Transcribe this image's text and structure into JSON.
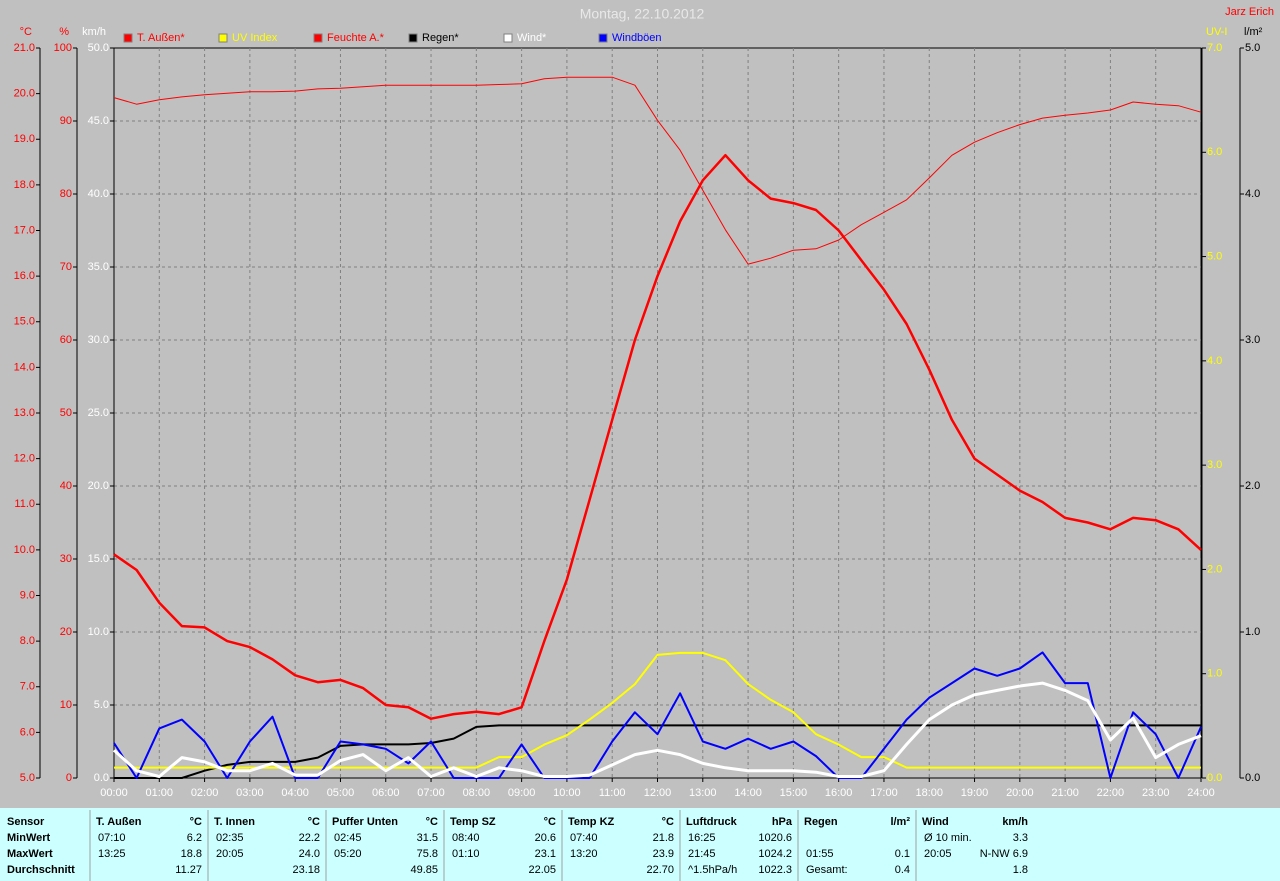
{
  "chart_data": {
    "type": "line",
    "title": "Montag, 22.10.2012",
    "author": "Jarz Erich",
    "x": [
      0,
      0.5,
      1,
      1.5,
      2,
      2.5,
      3,
      3.5,
      4,
      4.5,
      5,
      5.5,
      6,
      6.5,
      7,
      7.5,
      8,
      8.5,
      9,
      9.5,
      10,
      10.5,
      11,
      11.5,
      12,
      12.5,
      13,
      13.5,
      14,
      14.5,
      15,
      15.5,
      16,
      16.5,
      17,
      17.5,
      18,
      18.5,
      19,
      19.5,
      20,
      20.5,
      21,
      21.5,
      22,
      22.5,
      23,
      23.5,
      24
    ],
    "xlim": [
      0,
      24
    ],
    "xticks": [
      {
        "value": 0,
        "label": "00:00"
      },
      {
        "value": 1,
        "label": "01:00"
      },
      {
        "value": 2,
        "label": "02:00"
      },
      {
        "value": 3,
        "label": "03:00"
      },
      {
        "value": 4,
        "label": "04:00"
      },
      {
        "value": 5,
        "label": "05:00"
      },
      {
        "value": 6,
        "label": "06:00"
      },
      {
        "value": 7,
        "label": "07:00"
      },
      {
        "value": 8,
        "label": "08:00"
      },
      {
        "value": 9,
        "label": "09:00"
      },
      {
        "value": 10,
        "label": "10:00"
      },
      {
        "value": 11,
        "label": "11:00"
      },
      {
        "value": 12,
        "label": "12:00"
      },
      {
        "value": 13,
        "label": "13:00"
      },
      {
        "value": 14,
        "label": "14:00"
      },
      {
        "value": 15,
        "label": "15:00"
      },
      {
        "value": 16,
        "label": "16:00"
      },
      {
        "value": 17,
        "label": "17:00"
      },
      {
        "value": 18,
        "label": "18:00"
      },
      {
        "value": 19,
        "label": "19:00"
      },
      {
        "value": 20,
        "label": "20:00"
      },
      {
        "value": 21,
        "label": "21:00"
      },
      {
        "value": 22,
        "label": "22:00"
      },
      {
        "value": 23,
        "label": "23:00"
      },
      {
        "value": 24,
        "label": "24:00"
      }
    ],
    "grid": true,
    "axes": [
      {
        "label": "°C",
        "color": "#ff0000",
        "side": "left",
        "lim": [
          5,
          21
        ],
        "ticks": [
          {
            "value": 5,
            "label": "5.0"
          },
          {
            "value": 6,
            "label": "6.0"
          },
          {
            "value": 7,
            "label": "7.0"
          },
          {
            "value": 8,
            "label": "8.0"
          },
          {
            "value": 9,
            "label": "9.0"
          },
          {
            "value": 10,
            "label": "10.0"
          },
          {
            "value": 11,
            "label": "11.0"
          },
          {
            "value": 12,
            "label": "12.0"
          },
          {
            "value": 13,
            "label": "13.0"
          },
          {
            "value": 14,
            "label": "14.0"
          },
          {
            "value": 15,
            "label": "15.0"
          },
          {
            "value": 16,
            "label": "16.0"
          },
          {
            "value": 17,
            "label": "17.0"
          },
          {
            "value": 18,
            "label": "18.0"
          },
          {
            "value": 19,
            "label": "19.0"
          },
          {
            "value": 20,
            "label": "20.0"
          },
          {
            "value": 21,
            "label": "21.0"
          }
        ]
      },
      {
        "label": "%",
        "color": "#ff0000",
        "side": "left",
        "lim": [
          0,
          100
        ],
        "ticks": [
          0,
          10,
          20,
          30,
          40,
          50,
          60,
          70,
          80,
          90,
          100
        ]
      },
      {
        "label": "km/h",
        "color": "#ffffff",
        "side": "left",
        "lim": [
          0,
          50
        ],
        "grid": true,
        "ticks": [
          {
            "value": 0,
            "label": "0.0"
          },
          {
            "value": 5,
            "label": "5.0"
          },
          {
            "value": 10,
            "label": "10.0"
          },
          {
            "value": 15,
            "label": "15.0"
          },
          {
            "value": 20,
            "label": "20.0"
          },
          {
            "value": 25,
            "label": "25.0"
          },
          {
            "value": 30,
            "label": "30.0"
          },
          {
            "value": 35,
            "label": "35.0"
          },
          {
            "value": 40,
            "label": "40.0"
          },
          {
            "value": 45,
            "label": "45.0"
          },
          {
            "value": 50,
            "label": "50.0"
          }
        ]
      },
      {
        "label": "UV-I",
        "color": "#ffff00",
        "side": "right",
        "lim": [
          0,
          7
        ],
        "ticks": [
          {
            "value": 0,
            "label": "0.0"
          },
          {
            "value": 1,
            "label": "1.0"
          },
          {
            "value": 2,
            "label": "2.0"
          },
          {
            "value": 3,
            "label": "3.0"
          },
          {
            "value": 4,
            "label": "4.0"
          },
          {
            "value": 5,
            "label": "5.0"
          },
          {
            "value": 6,
            "label": "6.0"
          },
          {
            "value": 7,
            "label": "7.0"
          }
        ]
      },
      {
        "label": "l/m²",
        "color": "#000000",
        "side": "right",
        "lim": [
          0,
          5
        ],
        "ticks": [
          {
            "value": 0,
            "label": "0.0"
          },
          {
            "value": 1,
            "label": "1.0"
          },
          {
            "value": 2,
            "label": "2.0"
          },
          {
            "value": 3,
            "label": "3.0"
          },
          {
            "value": 4,
            "label": "4.0"
          },
          {
            "value": 5,
            "label": "5.0"
          }
        ]
      }
    ],
    "series": [
      {
        "name": "T. Außen*",
        "color": "#ff0000",
        "axis": 0,
        "line_width": 2.5,
        "values": [
          9.9,
          9.56,
          8.84,
          8.33,
          8.3,
          8.0,
          7.87,
          7.6,
          7.25,
          7.1,
          7.15,
          6.97,
          6.6,
          6.55,
          6.3,
          6.4,
          6.45,
          6.4,
          6.55,
          8.0,
          9.35,
          11.1,
          12.85,
          14.6,
          16.0,
          17.2,
          18.1,
          18.65,
          18.1,
          17.7,
          17.6,
          17.45,
          17.0,
          16.35,
          15.7,
          14.95,
          13.95,
          12.85,
          12.0,
          11.65,
          11.3,
          11.05,
          10.7,
          10.6,
          10.45,
          10.7,
          10.65,
          10.45,
          10.0
        ]
      },
      {
        "name": "UV Index",
        "color": "#ffff00",
        "axis": 3,
        "line_width": 2,
        "values": [
          0.1,
          0.1,
          0.1,
          0.1,
          0.1,
          0.1,
          0.1,
          0.1,
          0.1,
          0.1,
          0.1,
          0.1,
          0.1,
          0.1,
          0.1,
          0.1,
          0.1,
          0.2,
          0.2,
          0.32,
          0.41,
          0.56,
          0.72,
          0.9,
          1.18,
          1.2,
          1.2,
          1.13,
          0.9,
          0.75,
          0.63,
          0.42,
          0.32,
          0.2,
          0.2,
          0.1,
          0.1,
          0.1,
          0.1,
          0.1,
          0.1,
          0.1,
          0.1,
          0.1,
          0.1,
          0.1,
          0.1,
          0.1,
          0.1
        ]
      },
      {
        "name": "Feuchte A.*",
        "color": "#ff0000",
        "axis": 1,
        "line_width": 1,
        "values": [
          93.2,
          92.3,
          92.9,
          93.3,
          93.6,
          93.8,
          94.0,
          94.0,
          94.1,
          94.4,
          94.5,
          94.7,
          94.9,
          94.9,
          94.9,
          94.9,
          94.9,
          95.0,
          95.1,
          95.8,
          96.0,
          96.0,
          96.0,
          94.9,
          90.1,
          86.0,
          80.5,
          75.1,
          70.4,
          71.2,
          72.3,
          72.5,
          73.7,
          75.8,
          77.5,
          79.2,
          82.2,
          85.3,
          87.1,
          88.4,
          89.5,
          90.4,
          90.8,
          91.1,
          91.5,
          92.6,
          92.3,
          92.1,
          91.2
        ]
      },
      {
        "name": "Regen*",
        "color": "#000000",
        "axis": 4,
        "line_width": 2,
        "values": [
          0,
          0,
          0,
          0,
          0.05,
          0.09,
          0.11,
          0.11,
          0.11,
          0.14,
          0.22,
          0.23,
          0.23,
          0.23,
          0.24,
          0.27,
          0.35,
          0.36,
          0.36,
          0.36,
          0.36,
          0.36,
          0.36,
          0.36,
          0.36,
          0.36,
          0.36,
          0.36,
          0.36,
          0.36,
          0.36,
          0.36,
          0.36,
          0.36,
          0.36,
          0.36,
          0.36,
          0.36,
          0.36,
          0.36,
          0.36,
          0.36,
          0.36,
          0.36,
          0.36,
          0.36,
          0.36,
          0.36,
          0.36
        ]
      },
      {
        "name": "Wind*",
        "color": "#ffffff",
        "axis": 2,
        "line_width": 3,
        "values": [
          1.9,
          0.5,
          0.1,
          1.4,
          1.1,
          0.5,
          0.5,
          1.0,
          0.2,
          0.2,
          1.2,
          1.6,
          0.5,
          1.4,
          0.1,
          0.7,
          0.1,
          0.7,
          0.5,
          0.1,
          0.1,
          0.2,
          0.9,
          1.6,
          1.9,
          1.6,
          1.0,
          0.7,
          0.5,
          0.5,
          0.5,
          0.4,
          0.1,
          0.1,
          0.5,
          2.3,
          4.0,
          5.0,
          5.7,
          6.0,
          6.3,
          6.5,
          6.0,
          5.3,
          2.6,
          4.1,
          1.4,
          2.3,
          2.9
        ]
      },
      {
        "name": "Windböen",
        "color": "#0000ff",
        "axis": 2,
        "line_width": 2,
        "values": [
          2.4,
          0,
          3.4,
          4.0,
          2.5,
          0,
          2.5,
          4.2,
          0,
          0,
          2.5,
          2.3,
          2.0,
          1.0,
          2.5,
          0,
          0,
          0,
          2.3,
          0,
          0,
          0,
          2.5,
          4.5,
          3.0,
          5.8,
          2.5,
          2.0,
          2.7,
          2.0,
          2.5,
          1.5,
          0,
          0,
          2.0,
          4.0,
          5.5,
          6.5,
          7.5,
          7.0,
          7.5,
          8.6,
          6.5,
          6.5,
          0,
          4.5,
          3.0,
          0,
          3.5
        ]
      }
    ]
  },
  "table": {
    "row_labels": [
      "Sensor",
      "MinWert",
      "MaxWert",
      "Durchschnitt"
    ],
    "groups": [
      {
        "name": "T. Außen",
        "unit": "°C",
        "rows": [
          [
            "07:10",
            "6.2"
          ],
          [
            "13:25",
            "18.8"
          ],
          [
            null,
            "11.27"
          ]
        ]
      },
      {
        "name": "T. Innen",
        "unit": "°C",
        "rows": [
          [
            "02:35",
            "22.2"
          ],
          [
            "20:05",
            "24.0"
          ],
          [
            null,
            "23.18"
          ]
        ]
      },
      {
        "name": "Puffer Unten",
        "unit": "°C",
        "rows": [
          [
            "02:45",
            "31.5"
          ],
          [
            "05:20",
            "75.8"
          ],
          [
            null,
            "49.85"
          ]
        ]
      },
      {
        "name": "Temp SZ",
        "unit": "°C",
        "rows": [
          [
            "08:40",
            "20.6"
          ],
          [
            "01:10",
            "23.1"
          ],
          [
            null,
            "22.05"
          ]
        ]
      },
      {
        "name": "Temp KZ",
        "unit": "°C",
        "rows": [
          [
            "07:40",
            "21.8"
          ],
          [
            "13:20",
            "23.9"
          ],
          [
            null,
            "22.70"
          ]
        ]
      },
      {
        "name": "Luftdruck",
        "unit": "hPa",
        "rows": [
          [
            "16:25",
            "1020.6"
          ],
          [
            "21:45",
            "1024.2"
          ],
          [
            "^1.5hPa/h",
            "1022.3"
          ]
        ]
      },
      {
        "name": "Regen",
        "unit": "l/m²",
        "rows": [
          [
            null,
            null
          ],
          [
            "01:55",
            "0.1"
          ],
          [
            "Gesamt:",
            "0.4"
          ]
        ]
      },
      {
        "name": "Wind",
        "unit": "km/h",
        "rows": [
          [
            "Ø 10 min.",
            "3.3"
          ],
          [
            "20:05",
            "N-NW 6.9"
          ],
          [
            null,
            "1.8"
          ]
        ]
      }
    ]
  }
}
